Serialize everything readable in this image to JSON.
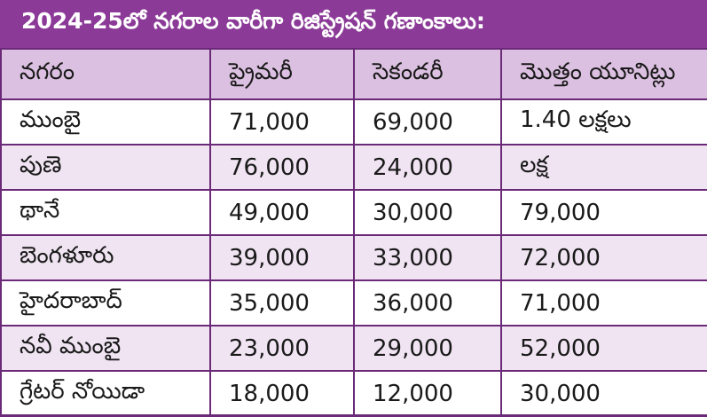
{
  "title": "2024-25లో నగరాల వారీగా రిజిస్ట్రేషన్ గణాంకాలు:",
  "headers": [
    "నగరం",
    "ప్రైమరీ",
    "సెకండరీ",
    "మొత్తం యూనిట్లు"
  ],
  "rows": [
    [
      "ముంబై",
      "71,000",
      "69,000",
      "1.40 లక్షలు"
    ],
    [
      "పుణె",
      "76,000",
      "24,000",
      "లక్ష"
    ],
    [
      "థానే",
      "49,000",
      "30,000",
      "79,000"
    ],
    [
      "బెంగళూరు",
      "39,000",
      "33,000",
      "72,000"
    ],
    [
      "హైదరాబాద్",
      "35,000",
      "36,000",
      "71,000"
    ],
    [
      "నవీ ముంబై",
      "23,000",
      "29,000",
      "52,000"
    ],
    [
      "గ్రేటర్ నోయిడా",
      "18,000",
      "12,000",
      "30,000"
    ]
  ],
  "colors": {
    "title_bg": "#8b3a97",
    "header_bg": "#dcc0e1",
    "stripe_bg": "#f0e4f2",
    "border": "#6b2a78"
  }
}
